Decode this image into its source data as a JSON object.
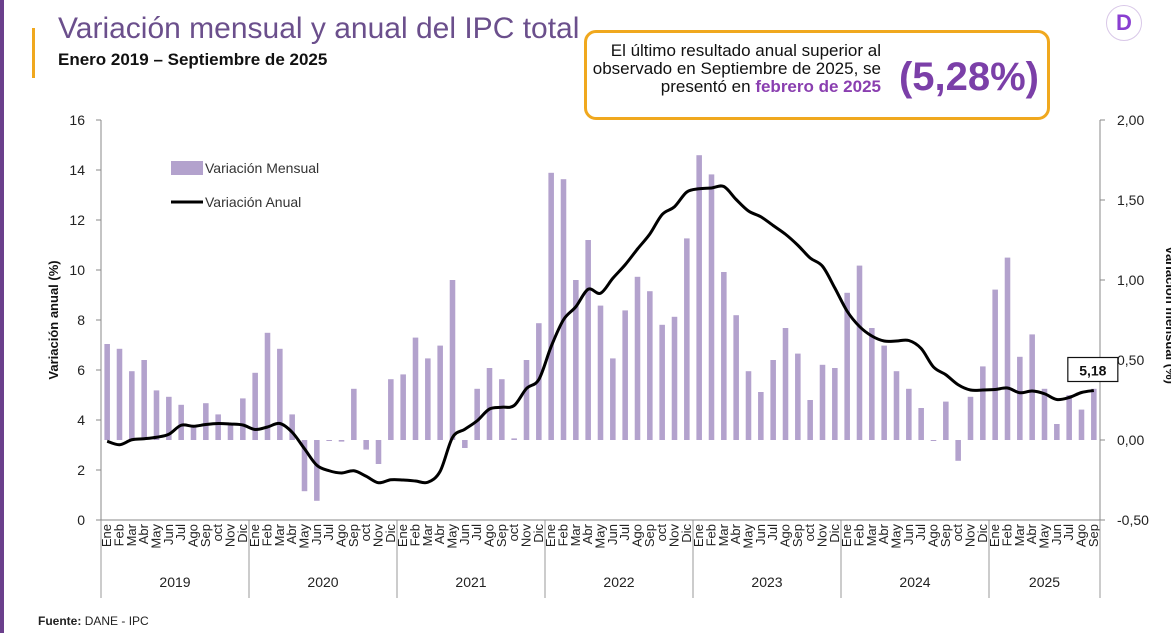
{
  "header": {
    "title": "Variación mensual y anual del IPC total",
    "subtitle": "Enero 2019 – Septiembre de 2025",
    "logo_letter": "D"
  },
  "callout": {
    "text_plain": "El último resultado anual superior al observado en Septiembre de 2025, se presentó en",
    "text_highlight": "febrero de 2025",
    "value": "(5,28%)"
  },
  "footer": {
    "source_label": "Fuente:",
    "source_text": "DANE - IPC"
  },
  "colors": {
    "bar": "#b3a2cd",
    "line": "#000000",
    "accent": "#f0a81e",
    "brand": "#6b3f8c"
  },
  "chart_data": {
    "type": "bar+line",
    "ylabel_left": "Variación anual (%)",
    "ylabel_right": "Variación mensual (%)",
    "ylim_left": [
      0,
      16
    ],
    "ylim_right": [
      -0.5,
      2.0
    ],
    "yticks_left": [
      "0",
      "2",
      "4",
      "6",
      "8",
      "10",
      "12",
      "14",
      "16"
    ],
    "yticks_right": [
      "-0,50",
      "0,00",
      "0,50",
      "1,00",
      "1,50",
      "2,00"
    ],
    "months": [
      "Ene",
      "Feb",
      "Mar",
      "Abr",
      "May",
      "Jun",
      "Jul",
      "Ago",
      "Sep",
      "oct",
      "Nov",
      "Dic"
    ],
    "years": [
      "2019",
      "2020",
      "2021",
      "2022",
      "2023",
      "2024",
      "2025"
    ],
    "last_label": "5,18",
    "series": [
      {
        "name": "Variación Mensual",
        "axis": "right",
        "type": "bar",
        "values": [
          0.6,
          0.57,
          0.43,
          0.5,
          0.31,
          0.27,
          0.22,
          0.09,
          0.23,
          0.16,
          0.1,
          0.26,
          0.42,
          0.67,
          0.57,
          0.16,
          -0.32,
          -0.38,
          0.0,
          -0.01,
          0.32,
          -0.06,
          -0.15,
          0.38,
          0.41,
          0.64,
          0.51,
          0.59,
          1.0,
          -0.05,
          0.32,
          0.45,
          0.38,
          0.01,
          0.5,
          0.73,
          1.67,
          1.63,
          1.0,
          1.25,
          0.84,
          0.51,
          0.81,
          1.02,
          0.93,
          0.72,
          0.77,
          1.26,
          1.78,
          1.66,
          1.05,
          0.78,
          0.43,
          0.3,
          0.5,
          0.7,
          0.54,
          0.25,
          0.47,
          0.45,
          0.92,
          1.09,
          0.7,
          0.59,
          0.43,
          0.32,
          0.2,
          0.0,
          0.24,
          -0.13,
          0.27,
          0.46,
          0.94,
          1.14,
          0.52,
          0.66,
          0.32,
          0.1,
          0.28,
          0.19,
          0.32
        ]
      },
      {
        "name": "Variación Anual",
        "axis": "left",
        "type": "line",
        "values": [
          3.15,
          3.01,
          3.21,
          3.25,
          3.31,
          3.43,
          3.79,
          3.75,
          3.82,
          3.86,
          3.84,
          3.8,
          3.62,
          3.72,
          3.86,
          3.51,
          2.85,
          2.19,
          1.97,
          1.88,
          1.97,
          1.75,
          1.49,
          1.61,
          1.6,
          1.56,
          1.51,
          1.95,
          3.3,
          3.63,
          3.97,
          4.44,
          4.51,
          4.58,
          5.26,
          5.62,
          6.94,
          8.01,
          8.53,
          9.23,
          9.07,
          9.67,
          10.21,
          10.84,
          11.44,
          12.22,
          12.53,
          13.12,
          13.25,
          13.28,
          13.34,
          12.82,
          12.36,
          12.13,
          11.78,
          11.43,
          10.99,
          10.48,
          10.15,
          9.28,
          8.35,
          7.74,
          7.36,
          7.16,
          7.16,
          7.18,
          6.86,
          6.12,
          5.81,
          5.41,
          5.2,
          5.2,
          5.22,
          5.28,
          5.09,
          5.16,
          5.05,
          4.82,
          4.9,
          5.1,
          5.18
        ]
      }
    ]
  }
}
